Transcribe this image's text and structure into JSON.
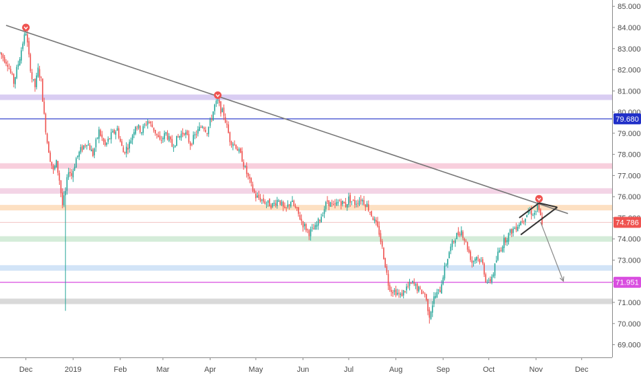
{
  "chart_data": {
    "type": "candlestick",
    "y_axis": {
      "range": [
        68.4,
        85.3
      ],
      "ticks": [
        "69.000",
        "70.000",
        "71.000",
        "72.000",
        "73.000",
        "74.000",
        "75.000",
        "76.000",
        "77.000",
        "78.000",
        "79.000",
        "80.000",
        "81.000",
        "82.000",
        "83.000",
        "84.000",
        "85.000"
      ]
    },
    "x_axis": {
      "ticks": [
        {
          "label": "Dec",
          "t": 0
        },
        {
          "label": "2019",
          "t": 31
        },
        {
          "label": "Feb",
          "t": 62
        },
        {
          "label": "Mar",
          "t": 90
        },
        {
          "label": "Apr",
          "t": 121
        },
        {
          "label": "May",
          "t": 151
        },
        {
          "label": "Jun",
          "t": 182
        },
        {
          "label": "Jul",
          "t": 212
        },
        {
          "label": "Aug",
          "t": 243
        },
        {
          "label": "Sep",
          "t": 274
        },
        {
          "label": "Oct",
          "t": 304
        },
        {
          "label": "Nov",
          "t": 335
        },
        {
          "label": "Dec",
          "t": 365
        }
      ],
      "range": [
        -17,
        385
      ]
    },
    "price_path": [
      [
        -17,
        82.8
      ],
      [
        -12,
        82.3
      ],
      [
        -8,
        81.4
      ],
      [
        -4,
        82.6
      ],
      [
        -2,
        83.3
      ],
      [
        0,
        83.8
      ],
      [
        2,
        82.6
      ],
      [
        4,
        81.6
      ],
      [
        6,
        81.2
      ],
      [
        8,
        82.0
      ],
      [
        10,
        81.5
      ],
      [
        12,
        79.8
      ],
      [
        14,
        78.6
      ],
      [
        16,
        77.8
      ],
      [
        18,
        77.2
      ],
      [
        20,
        77.6
      ],
      [
        22,
        76.8
      ],
      [
        24,
        75.6
      ],
      [
        26,
        76.2
      ],
      [
        28,
        77.3
      ],
      [
        30,
        77.0
      ],
      [
        33,
        77.8
      ],
      [
        36,
        78.2
      ],
      [
        40,
        78.6
      ],
      [
        44,
        78.0
      ],
      [
        48,
        79.1
      ],
      [
        52,
        78.4
      ],
      [
        56,
        78.9
      ],
      [
        60,
        79.2
      ],
      [
        62,
        78.6
      ],
      [
        64,
        78.1
      ],
      [
        68,
        78.5
      ],
      [
        72,
        79.4
      ],
      [
        76,
        79.1
      ],
      [
        80,
        79.6
      ],
      [
        84,
        79.2
      ],
      [
        88,
        78.6
      ],
      [
        92,
        79.0
      ],
      [
        96,
        78.4
      ],
      [
        100,
        78.8
      ],
      [
        104,
        79.1
      ],
      [
        108,
        78.5
      ],
      [
        112,
        79.0
      ],
      [
        116,
        79.4
      ],
      [
        119,
        79.1
      ],
      [
        121,
        79.5
      ],
      [
        124,
        80.3
      ],
      [
        126,
        80.5
      ],
      [
        128,
        80.1
      ],
      [
        130,
        79.9
      ],
      [
        132,
        79.3
      ],
      [
        134,
        78.7
      ],
      [
        138,
        78.4
      ],
      [
        142,
        77.8
      ],
      [
        144,
        77.3
      ],
      [
        146,
        76.9
      ],
      [
        148,
        76.5
      ],
      [
        151,
        76.0
      ],
      [
        154,
        75.9
      ],
      [
        158,
        75.7
      ],
      [
        162,
        75.6
      ],
      [
        166,
        75.9
      ],
      [
        170,
        75.3
      ],
      [
        174,
        75.8
      ],
      [
        178,
        75.3
      ],
      [
        182,
        74.7
      ],
      [
        186,
        74.3
      ],
      [
        190,
        74.5
      ],
      [
        194,
        75.1
      ],
      [
        198,
        75.8
      ],
      [
        202,
        75.5
      ],
      [
        206,
        75.8
      ],
      [
        210,
        75.6
      ],
      [
        212,
        75.9
      ],
      [
        216,
        75.7
      ],
      [
        220,
        75.9
      ],
      [
        224,
        75.6
      ],
      [
        228,
        75.0
      ],
      [
        232,
        74.3
      ],
      [
        236,
        72.8
      ],
      [
        238,
        71.9
      ],
      [
        240,
        71.6
      ],
      [
        243,
        71.5
      ],
      [
        246,
        71.3
      ],
      [
        250,
        71.7
      ],
      [
        254,
        71.9
      ],
      [
        258,
        71.6
      ],
      [
        262,
        71.4
      ],
      [
        265,
        70.4
      ],
      [
        268,
        71.2
      ],
      [
        272,
        71.6
      ],
      [
        274,
        72.3
      ],
      [
        278,
        73.4
      ],
      [
        282,
        74.1
      ],
      [
        286,
        74.4
      ],
      [
        290,
        73.6
      ],
      [
        293,
        72.9
      ],
      [
        296,
        73.2
      ],
      [
        300,
        72.8
      ],
      [
        302,
        72.1
      ],
      [
        304,
        71.9
      ],
      [
        307,
        72.4
      ],
      [
        310,
        73.3
      ],
      [
        314,
        73.9
      ],
      [
        318,
        74.3
      ],
      [
        322,
        74.6
      ],
      [
        326,
        74.9
      ],
      [
        330,
        75.3
      ],
      [
        334,
        75.2
      ],
      [
        336,
        75.5
      ],
      [
        339,
        74.8
      ]
    ],
    "horizontal_zones": [
      {
        "price": 80.7,
        "color": "#d9cdf2"
      },
      {
        "price": 77.45,
        "color": "#f8cfdd"
      },
      {
        "price": 76.27,
        "color": "#f3d4e6"
      },
      {
        "price": 75.48,
        "color": "#fde0c2"
      },
      {
        "price": 74.0,
        "color": "#d4ecd9"
      },
      {
        "price": 72.63,
        "color": "#d2e4f7"
      },
      {
        "price": 71.05,
        "color": "#d9d9d9"
      }
    ],
    "horizontal_lines": [
      {
        "price": 79.68,
        "color": "#2130c8",
        "label": "79.680"
      },
      {
        "price": 71.951,
        "color": "#d94ee0",
        "label": "71.951"
      }
    ],
    "current_price": {
      "price": 74.786,
      "label": "74.786",
      "color": "#ef5350"
    },
    "trendline": {
      "from": [
        -13,
        84.1
      ],
      "to": [
        356,
        75.2
      ],
      "color": "#777777"
    },
    "markers": [
      {
        "t": 0,
        "price": 84.0,
        "color": "#ef5350"
      },
      {
        "t": 126,
        "price": 80.8,
        "color": "#ef5350"
      },
      {
        "t": 337,
        "price": 75.9,
        "color": "#ef5350"
      }
    ],
    "wedge": {
      "upper": [
        [
          324,
          75.0
        ],
        [
          337,
          75.7
        ]
      ],
      "lower": [
        [
          325,
          74.2
        ],
        [
          349,
          75.5
        ]
      ],
      "apex_line": [
        [
          337,
          75.7
        ],
        [
          349,
          75.5
        ]
      ],
      "color": "#333333"
    },
    "projection_arrow": {
      "from": [
        338,
        74.8
      ],
      "to": [
        353,
        72.0
      ],
      "color": "#888888"
    },
    "long_wick": {
      "t": 26,
      "low": 70.6,
      "high": 76.0
    },
    "late_aug_wick": {
      "t": 265,
      "low": 70.0,
      "high": 71.4
    },
    "colors": {
      "up": "#26a69a",
      "down": "#ef5350",
      "axis_text": "#4a4a4a",
      "axis_line": "#e0e3eb"
    }
  }
}
